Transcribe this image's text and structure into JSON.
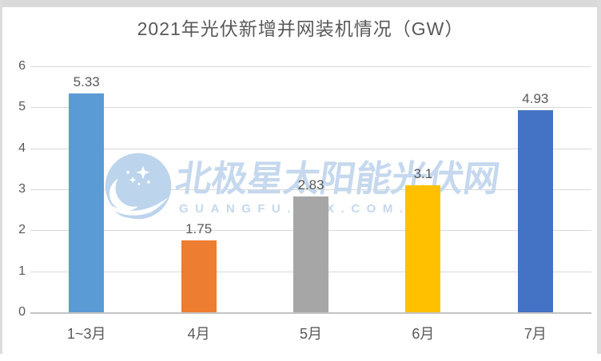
{
  "title": "2021年光伏新增并网装机情况（GW）",
  "watermark": {
    "logo": "moon-stars-logo",
    "line1": "北极星太阳能光伏网",
    "line2": "GUANGFU.BJX.COM.CN",
    "color_text": "#c5d8ee",
    "color_logo": "#bcd4ec"
  },
  "frame": {
    "edge_color": "#dcdcdc",
    "bottom_strip_color": "#d9d9d9"
  },
  "chart_data": {
    "type": "bar",
    "title": "2021年光伏新增并网装机情况（GW）",
    "categories": [
      "1~3月",
      "4月",
      "5月",
      "6月",
      "7月"
    ],
    "values": [
      5.33,
      1.75,
      2.83,
      3.1,
      4.93
    ],
    "value_labels": [
      "5.33",
      "1.75",
      "2.83",
      "3.1",
      "4.93"
    ],
    "bar_colors": [
      "#5B9BD5",
      "#ED7D31",
      "#A6A6A6",
      "#FFC000",
      "#4472C4"
    ],
    "xlabel": "",
    "ylabel": "",
    "ylim": [
      0,
      6
    ],
    "yticks": [
      0,
      1,
      2,
      3,
      4,
      5,
      6
    ],
    "grid": true,
    "gridline_color": "#d9d9d9",
    "axis_line_color": "#c3c3c3",
    "text_color": "#595959",
    "legend": "none"
  }
}
